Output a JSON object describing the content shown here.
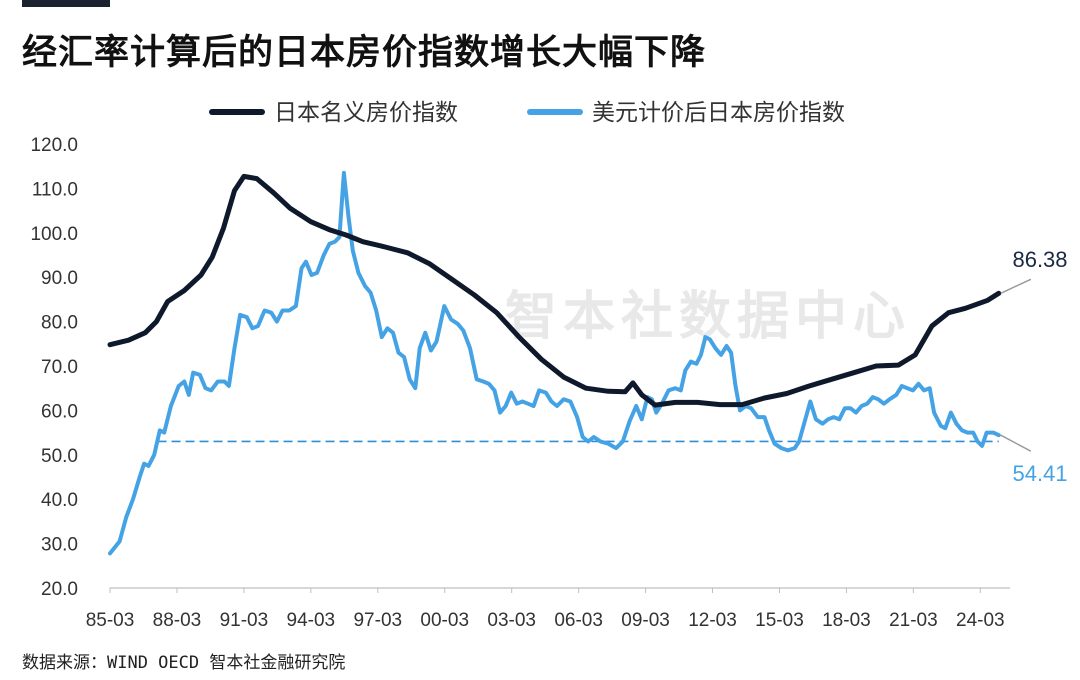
{
  "header": {
    "title": "经汇率计算后的日本房价指数增长大幅下降"
  },
  "watermark": "智本社数据中心",
  "footer": {
    "source": "数据来源：WIND OECD 智本社金融研究院"
  },
  "colors": {
    "nominal": "#0e1a2b",
    "usd": "#45a3e5",
    "reference": "#2c8fd9",
    "pointer": "#9a9a9a"
  },
  "chart_data": {
    "type": "line",
    "title": "经汇率计算后的日本房价指数增长大幅下降",
    "xlabel": "",
    "ylabel": "",
    "xlim": [
      1985.17,
      2025.5
    ],
    "ylim": [
      20,
      120
    ],
    "y_ticks": [
      "20.0",
      "30.0",
      "40.0",
      "50.0",
      "60.0",
      "70.0",
      "80.0",
      "90.0",
      "100.0",
      "110.0",
      "120.0"
    ],
    "x_ticks": [
      {
        "label": "85-03",
        "x": 1985.17
      },
      {
        "label": "88-03",
        "x": 1988.17
      },
      {
        "label": "91-03",
        "x": 1991.17
      },
      {
        "label": "94-03",
        "x": 1994.17
      },
      {
        "label": "97-03",
        "x": 1997.17
      },
      {
        "label": "00-03",
        "x": 2000.17
      },
      {
        "label": "03-03",
        "x": 2003.17
      },
      {
        "label": "06-03",
        "x": 2006.17
      },
      {
        "label": "09-03",
        "x": 2009.17
      },
      {
        "label": "12-03",
        "x": 2012.17
      },
      {
        "label": "15-03",
        "x": 2015.17
      },
      {
        "label": "18-03",
        "x": 2018.17
      },
      {
        "label": "21-03",
        "x": 2021.17
      },
      {
        "label": "24-03",
        "x": 2024.17
      }
    ],
    "grid": false,
    "legend_position": "top-center",
    "series": [
      {
        "name": "日本名义房价指数",
        "end_label": "86.38",
        "points": [
          [
            1985.17,
            74.8
          ],
          [
            1986.0,
            75.8
          ],
          [
            1986.75,
            77.5
          ],
          [
            1987.25,
            80.0
          ],
          [
            1987.75,
            84.5
          ],
          [
            1988.5,
            87.0
          ],
          [
            1989.25,
            90.5
          ],
          [
            1989.75,
            94.5
          ],
          [
            1990.25,
            101.0
          ],
          [
            1990.75,
            109.5
          ],
          [
            1991.17,
            112.7
          ],
          [
            1991.75,
            112.2
          ],
          [
            1992.5,
            109.0
          ],
          [
            1993.25,
            105.5
          ],
          [
            1994.17,
            102.5
          ],
          [
            1995.0,
            100.7
          ],
          [
            1995.75,
            99.5
          ],
          [
            1996.5,
            98.0
          ],
          [
            1997.5,
            96.8
          ],
          [
            1998.5,
            95.5
          ],
          [
            1999.5,
            93.0
          ],
          [
            2000.5,
            89.5
          ],
          [
            2001.5,
            86.0
          ],
          [
            2002.5,
            82.0
          ],
          [
            2003.5,
            76.5
          ],
          [
            2004.5,
            71.5
          ],
          [
            2005.5,
            67.5
          ],
          [
            2006.5,
            65.0
          ],
          [
            2007.5,
            64.3
          ],
          [
            2008.25,
            64.2
          ],
          [
            2008.6,
            66.2
          ],
          [
            2009.0,
            63.5
          ],
          [
            2009.6,
            61.2
          ],
          [
            2010.5,
            61.8
          ],
          [
            2011.5,
            61.8
          ],
          [
            2012.5,
            61.3
          ],
          [
            2013.5,
            61.3
          ],
          [
            2014.5,
            62.8
          ],
          [
            2015.5,
            63.8
          ],
          [
            2016.5,
            65.5
          ],
          [
            2017.5,
            67.0
          ],
          [
            2018.5,
            68.5
          ],
          [
            2019.5,
            70.0
          ],
          [
            2020.5,
            70.2
          ],
          [
            2021.25,
            72.5
          ],
          [
            2022.0,
            79.0
          ],
          [
            2022.75,
            82.0
          ],
          [
            2023.5,
            83.0
          ],
          [
            2024.5,
            84.8
          ],
          [
            2025.0,
            86.38
          ]
        ]
      },
      {
        "name": "美元计价后日本房价指数",
        "end_label": "54.41",
        "points": [
          [
            1985.17,
            27.8
          ],
          [
            1985.6,
            30.5
          ],
          [
            1985.9,
            36.0
          ],
          [
            1986.2,
            40.0
          ],
          [
            1986.5,
            45.0
          ],
          [
            1986.7,
            48.0
          ],
          [
            1986.9,
            47.5
          ],
          [
            1987.15,
            50.0
          ],
          [
            1987.4,
            55.5
          ],
          [
            1987.6,
            55.0
          ],
          [
            1987.9,
            61.0
          ],
          [
            1988.25,
            65.5
          ],
          [
            1988.5,
            66.5
          ],
          [
            1988.7,
            63.5
          ],
          [
            1988.9,
            68.5
          ],
          [
            1989.2,
            68.0
          ],
          [
            1989.45,
            65.0
          ],
          [
            1989.7,
            64.5
          ],
          [
            1990.0,
            66.5
          ],
          [
            1990.3,
            66.5
          ],
          [
            1990.5,
            65.5
          ],
          [
            1990.75,
            74.0
          ],
          [
            1991.0,
            81.5
          ],
          [
            1991.3,
            81.0
          ],
          [
            1991.55,
            78.5
          ],
          [
            1991.8,
            79.0
          ],
          [
            1992.1,
            82.5
          ],
          [
            1992.4,
            82.0
          ],
          [
            1992.65,
            80.0
          ],
          [
            1992.9,
            82.5
          ],
          [
            1993.2,
            82.5
          ],
          [
            1993.5,
            83.5
          ],
          [
            1993.75,
            92.0
          ],
          [
            1993.95,
            93.5
          ],
          [
            1994.2,
            90.5
          ],
          [
            1994.45,
            91.0
          ],
          [
            1994.75,
            95.0
          ],
          [
            1995.0,
            97.5
          ],
          [
            1995.25,
            98.0
          ],
          [
            1995.45,
            99.0
          ],
          [
            1995.65,
            113.5
          ],
          [
            1995.85,
            104.0
          ],
          [
            1996.05,
            96.0
          ],
          [
            1996.3,
            91.0
          ],
          [
            1996.6,
            88.0
          ],
          [
            1996.85,
            86.5
          ],
          [
            1997.1,
            82.5
          ],
          [
            1997.35,
            76.5
          ],
          [
            1997.6,
            78.5
          ],
          [
            1997.85,
            77.5
          ],
          [
            1998.1,
            73.0
          ],
          [
            1998.35,
            72.0
          ],
          [
            1998.6,
            67.0
          ],
          [
            1998.85,
            65.0
          ],
          [
            1999.05,
            74.0
          ],
          [
            1999.3,
            77.5
          ],
          [
            1999.55,
            73.5
          ],
          [
            1999.8,
            75.5
          ],
          [
            2000.15,
            83.5
          ],
          [
            2000.45,
            80.5
          ],
          [
            2000.75,
            79.5
          ],
          [
            2001.0,
            78.0
          ],
          [
            2001.3,
            74.0
          ],
          [
            2001.6,
            67.0
          ],
          [
            2001.9,
            66.5
          ],
          [
            2002.15,
            66.0
          ],
          [
            2002.4,
            64.5
          ],
          [
            2002.65,
            59.5
          ],
          [
            2002.9,
            61.0
          ],
          [
            2003.15,
            64.0
          ],
          [
            2003.4,
            61.5
          ],
          [
            2003.65,
            62.0
          ],
          [
            2003.9,
            61.5
          ],
          [
            2004.15,
            61.0
          ],
          [
            2004.4,
            64.5
          ],
          [
            2004.7,
            64.0
          ],
          [
            2004.95,
            62.0
          ],
          [
            2005.2,
            61.0
          ],
          [
            2005.5,
            62.5
          ],
          [
            2005.8,
            62.0
          ],
          [
            2006.1,
            58.5
          ],
          [
            2006.35,
            54.0
          ],
          [
            2006.6,
            53.0
          ],
          [
            2006.85,
            54.0
          ],
          [
            2007.15,
            53.0
          ],
          [
            2007.5,
            52.5
          ],
          [
            2007.85,
            51.5
          ],
          [
            2008.15,
            53.0
          ],
          [
            2008.45,
            57.5
          ],
          [
            2008.75,
            61.0
          ],
          [
            2009.0,
            58.0
          ],
          [
            2009.25,
            63.0
          ],
          [
            2009.45,
            62.5
          ],
          [
            2009.65,
            59.5
          ],
          [
            2009.9,
            61.5
          ],
          [
            2010.2,
            64.5
          ],
          [
            2010.5,
            65.0
          ],
          [
            2010.75,
            64.5
          ],
          [
            2010.95,
            69.0
          ],
          [
            2011.2,
            71.0
          ],
          [
            2011.45,
            70.5
          ],
          [
            2011.65,
            72.5
          ],
          [
            2011.85,
            76.5
          ],
          [
            2012.05,
            76.0
          ],
          [
            2012.3,
            74.0
          ],
          [
            2012.55,
            72.5
          ],
          [
            2012.8,
            74.5
          ],
          [
            2013.0,
            73.0
          ],
          [
            2013.2,
            65.5
          ],
          [
            2013.4,
            60.0
          ],
          [
            2013.65,
            61.0
          ],
          [
            2013.9,
            60.5
          ],
          [
            2014.2,
            58.5
          ],
          [
            2014.5,
            58.5
          ],
          [
            2014.7,
            55.5
          ],
          [
            2014.95,
            52.5
          ],
          [
            2015.25,
            51.5
          ],
          [
            2015.55,
            51.0
          ],
          [
            2015.85,
            51.5
          ],
          [
            2016.05,
            53.0
          ],
          [
            2016.3,
            57.5
          ],
          [
            2016.55,
            62.0
          ],
          [
            2016.8,
            58.0
          ],
          [
            2017.1,
            57.0
          ],
          [
            2017.35,
            58.0
          ],
          [
            2017.6,
            58.5
          ],
          [
            2017.85,
            58.0
          ],
          [
            2018.1,
            60.5
          ],
          [
            2018.35,
            60.5
          ],
          [
            2018.6,
            59.5
          ],
          [
            2018.85,
            61.0
          ],
          [
            2019.1,
            61.5
          ],
          [
            2019.35,
            63.0
          ],
          [
            2019.6,
            62.5
          ],
          [
            2019.85,
            61.5
          ],
          [
            2020.1,
            62.5
          ],
          [
            2020.4,
            63.5
          ],
          [
            2020.65,
            65.5
          ],
          [
            2020.9,
            65.0
          ],
          [
            2021.15,
            64.5
          ],
          [
            2021.4,
            66.0
          ],
          [
            2021.65,
            64.5
          ],
          [
            2021.9,
            65.0
          ],
          [
            2022.1,
            59.5
          ],
          [
            2022.4,
            56.5
          ],
          [
            2022.6,
            56.0
          ],
          [
            2022.85,
            59.5
          ],
          [
            2023.1,
            57.0
          ],
          [
            2023.35,
            55.5
          ],
          [
            2023.6,
            55.0
          ],
          [
            2023.85,
            55.0
          ],
          [
            2024.05,
            53.0
          ],
          [
            2024.25,
            52.0
          ],
          [
            2024.45,
            55.0
          ],
          [
            2024.75,
            55.0
          ],
          [
            2025.0,
            54.41
          ]
        ]
      }
    ],
    "reference_line": {
      "y": 53.0,
      "x_start": 1987.3,
      "x_end": 2025.0,
      "style": "dashed"
    }
  }
}
